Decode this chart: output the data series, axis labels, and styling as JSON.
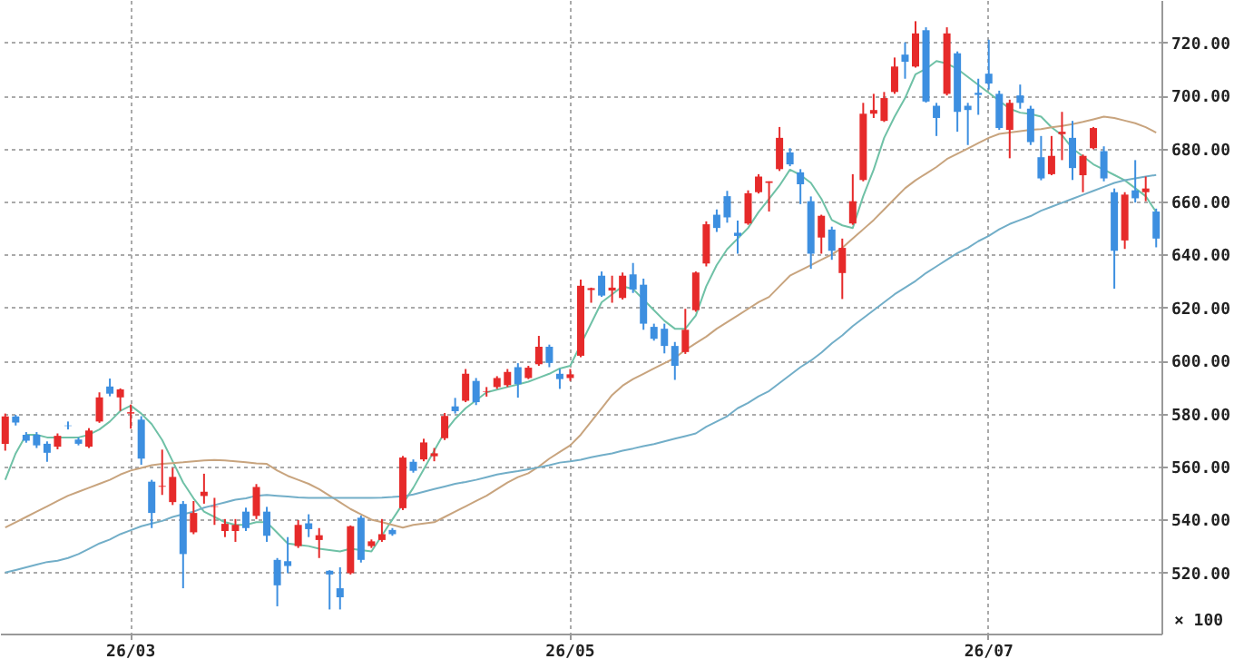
{
  "chart_data": {
    "type": "candlestick",
    "categories": [
      null,
      null,
      null,
      null,
      null,
      null,
      null,
      null,
      null,
      null,
      null,
      null,
      "26/03",
      null,
      null,
      null,
      null,
      null,
      null,
      null,
      null,
      null,
      null,
      null,
      null,
      null,
      null,
      null,
      null,
      null,
      null,
      null,
      null,
      null,
      null,
      null,
      null,
      null,
      null,
      null,
      null,
      null,
      null,
      null,
      null,
      null,
      null,
      null,
      null,
      null,
      null,
      null,
      null,
      null,
      "26/05",
      null,
      null,
      null,
      null,
      null,
      null,
      null,
      null,
      null,
      null,
      null,
      null,
      null,
      null,
      null,
      null,
      null,
      null,
      null,
      null,
      null,
      null,
      null,
      null,
      null,
      null,
      null,
      null,
      null,
      null,
      null,
      null,
      null,
      null,
      null,
      null,
      null,
      null,
      null,
      "26/07",
      null,
      null,
      null,
      null,
      null,
      null,
      null,
      null,
      null,
      null,
      null,
      null,
      null,
      null,
      null,
      null
    ],
    "ohlc": [
      [
        568.6,
        580,
        566,
        578.9
      ],
      [
        578.9,
        579.5,
        575.5,
        576.6
      ],
      [
        572,
        573,
        569,
        569.8
      ],
      [
        572,
        573,
        567,
        568
      ],
      [
        568.6,
        569.5,
        561.8,
        565.2
      ],
      [
        567.5,
        572.5,
        566.5,
        571.6
      ],
      [
        575.5,
        577,
        574,
        575.3
      ],
      [
        570.2,
        571,
        568,
        568.6
      ],
      [
        567.5,
        574.5,
        567,
        573.6
      ],
      [
        577,
        588,
        576.5,
        586.1
      ],
      [
        590.2,
        593.2,
        586.5,
        587.5
      ],
      [
        586.1,
        589.5,
        581,
        589.1
      ],
      [
        580,
        583.4,
        574.3,
        580.5
      ],
      [
        577.7,
        579,
        560.7,
        563
      ],
      [
        554.3,
        555,
        536.8,
        542.5
      ],
      [
        552.4,
        566.4,
        549.3,
        552.7
      ],
      [
        546.6,
        559.5,
        545.5,
        556.1
      ],
      [
        545.9,
        547,
        514.1,
        527
      ],
      [
        535.2,
        547,
        534.5,
        542.5
      ],
      [
        548.9,
        557.3,
        546,
        550.5
      ],
      [
        544.8,
        548.2,
        538,
        545
      ],
      [
        535.7,
        540.2,
        533.4,
        538.4
      ],
      [
        535.7,
        540.2,
        531.6,
        538
      ],
      [
        543,
        544.5,
        535.7,
        536.8
      ],
      [
        541.4,
        553.4,
        540.2,
        552.3
      ],
      [
        543,
        544.8,
        531.6,
        533.9
      ],
      [
        524.8,
        525.5,
        507.3,
        515.2
      ],
      [
        524.3,
        533.4,
        519.8,
        522.5
      ],
      [
        530,
        539.8,
        529.3,
        538
      ],
      [
        538.6,
        542,
        533.4,
        536.4
      ],
      [
        532.3,
        536.8,
        525.5,
        534.1
      ],
      [
        520.7,
        520.9,
        506.1,
        519.3
      ],
      [
        514.1,
        522,
        506.1,
        510.7
      ],
      [
        519.8,
        537.8,
        519.3,
        537.5
      ],
      [
        540.7,
        541.5,
        523.8,
        524.8
      ],
      [
        530,
        532.5,
        529.3,
        531.8
      ],
      [
        532.3,
        540.2,
        531.6,
        534.5
      ],
      [
        536.1,
        536.8,
        533.9,
        534.5
      ],
      [
        544.3,
        564,
        543.6,
        563.4
      ],
      [
        561.8,
        562.7,
        557.7,
        558.4
      ],
      [
        562.7,
        570.5,
        562,
        569.1
      ],
      [
        563.9,
        567,
        562,
        565
      ],
      [
        570.7,
        580.2,
        570,
        579.1
      ],
      [
        582.7,
        585.9,
        580,
        580.9
      ],
      [
        584.8,
        596.8,
        584.3,
        595
      ],
      [
        592.3,
        593.4,
        583.2,
        584.3
      ],
      [
        588.2,
        590,
        586.4,
        588.4
      ],
      [
        590,
        594.1,
        589.3,
        593.4
      ],
      [
        590.7,
        596.8,
        590,
        595.7
      ],
      [
        597.5,
        599,
        586,
        591.1
      ],
      [
        593.4,
        598,
        593,
        597.3
      ],
      [
        598.6,
        609.3,
        598,
        605.2
      ],
      [
        605.2,
        606,
        597.5,
        599.1
      ],
      [
        595,
        596.8,
        589.3,
        593
      ],
      [
        593.4,
        596.8,
        592.3,
        594.8
      ],
      [
        601.8,
        630.5,
        601.3,
        628.2
      ],
      [
        626.6,
        627.5,
        621.8,
        627.3
      ],
      [
        632,
        633.6,
        624,
        624.5
      ],
      [
        626.4,
        632,
        621.8,
        627.5
      ],
      [
        623.6,
        633.2,
        623,
        632
      ],
      [
        632.5,
        636.8,
        625.5,
        626.8
      ],
      [
        628.6,
        630.9,
        611.6,
        613.9
      ],
      [
        612.7,
        613.9,
        607.5,
        608.2
      ],
      [
        612,
        613.9,
        602.7,
        605.5
      ],
      [
        605.5,
        607,
        592.7,
        598
      ],
      [
        603.2,
        619.5,
        602.5,
        611.6
      ],
      [
        619,
        633.6,
        618.4,
        633.2
      ],
      [
        636.6,
        652.5,
        635.5,
        651.4
      ],
      [
        655,
        657,
        648.5,
        650
      ],
      [
        662,
        664,
        652,
        654
      ],
      [
        648.2,
        652.8,
        640.3,
        647
      ],
      [
        651.7,
        664.2,
        651.2,
        663.1
      ],
      [
        663.5,
        670.3,
        663,
        669.4
      ],
      [
        667,
        667.6,
        656.2,
        667.6
      ],
      [
        672.2,
        688.1,
        671.5,
        684
      ],
      [
        678.5,
        680.1,
        673.3,
        674
      ],
      [
        671,
        672.2,
        659,
        666.5
      ],
      [
        660.1,
        661.9,
        634.6,
        640.3
      ],
      [
        646.4,
        655,
        640.3,
        654.6
      ],
      [
        649.4,
        650.5,
        638,
        641.4
      ],
      [
        633,
        646,
        623.2,
        642.5
      ],
      [
        651.7,
        670.3,
        651.2,
        660.1
      ],
      [
        668.1,
        697.2,
        667.6,
        693.1
      ],
      [
        693.1,
        700.6,
        691.5,
        694.5
      ],
      [
        690.4,
        701.3,
        690,
        699
      ],
      [
        701.3,
        714.3,
        700.6,
        710.9
      ],
      [
        715.4,
        720,
        706.3,
        712.7
      ],
      [
        710.9,
        728,
        710.5,
        723.4
      ],
      [
        724.6,
        725.7,
        697.3,
        697.7
      ],
      [
        696.1,
        697.2,
        684.7,
        691.5
      ],
      [
        700.6,
        725.7,
        700,
        723.4
      ],
      [
        715.9,
        716.6,
        686.3,
        693.8
      ],
      [
        696.1,
        697.2,
        681.3,
        694.5
      ],
      [
        701,
        706.3,
        692.7,
        700.2
      ],
      [
        708.2,
        721,
        702.2,
        704.5
      ],
      [
        700.6,
        701.8,
        687,
        687.7
      ],
      [
        687,
        698.4,
        676.3,
        697.2
      ],
      [
        700,
        704.1,
        695,
        697.2
      ],
      [
        695,
        696.1,
        681.3,
        682.4
      ],
      [
        676.7,
        684.7,
        668,
        668.7
      ],
      [
        670.3,
        684.7,
        669.9,
        677.2
      ],
      [
        685.4,
        693.8,
        675.6,
        686.3
      ],
      [
        684,
        690.4,
        668.1,
        672.6
      ],
      [
        669.9,
        677.7,
        663.5,
        677.2
      ],
      [
        680.1,
        688.1,
        679.7,
        687.7
      ],
      [
        679,
        680.8,
        667.6,
        668.7
      ],
      [
        663.5,
        664.9,
        627.1,
        641.4
      ],
      [
        645.3,
        663.5,
        642.1,
        662.6
      ],
      [
        664.2,
        675.6,
        659.6,
        661.2
      ],
      [
        663.5,
        669.4,
        660.1,
        664.9
      ],
      [
        656.2,
        657.3,
        642.7,
        646
      ]
    ],
    "colors": [
      "#e62a2a",
      "#3d8fe0",
      "#3d8fe0",
      "#3d8fe0",
      "#3d8fe0",
      "#e62a2a",
      "#3d8fe0",
      "#3d8fe0",
      "#e62a2a",
      "#e62a2a",
      "#3d8fe0",
      "#e62a2a",
      "#e62a2a",
      "#3d8fe0",
      "#3d8fe0",
      "#e62a2a",
      "#e62a2a",
      "#3d8fe0",
      "#e62a2a",
      "#e62a2a",
      "#e62a2a",
      "#e62a2a",
      "#e62a2a",
      "#3d8fe0",
      "#e62a2a",
      "#3d8fe0",
      "#3d8fe0",
      "#3d8fe0",
      "#e62a2a",
      "#3d8fe0",
      "#e62a2a",
      "#3d8fe0",
      "#3d8fe0",
      "#e62a2a",
      "#3d8fe0",
      "#e62a2a",
      "#e62a2a",
      "#3d8fe0",
      "#e62a2a",
      "#3d8fe0",
      "#e62a2a",
      "#e62a2a",
      "#e62a2a",
      "#3d8fe0",
      "#e62a2a",
      "#3d8fe0",
      "#e62a2a",
      "#e62a2a",
      "#e62a2a",
      "#3d8fe0",
      "#e62a2a",
      "#e62a2a",
      "#3d8fe0",
      "#3d8fe0",
      "#e62a2a",
      "#e62a2a",
      "#e62a2a",
      "#3d8fe0",
      "#e62a2a",
      "#e62a2a",
      "#3d8fe0",
      "#3d8fe0",
      "#3d8fe0",
      "#3d8fe0",
      "#3d8fe0",
      "#e62a2a",
      "#e62a2a",
      "#e62a2a",
      "#3d8fe0",
      "#3d8fe0",
      "#3d8fe0",
      "#e62a2a",
      "#e62a2a",
      "#e62a2a",
      "#e62a2a",
      "#3d8fe0",
      "#3d8fe0",
      "#3d8fe0",
      "#e62a2a",
      "#3d8fe0",
      "#e62a2a",
      "#e62a2a",
      "#e62a2a",
      "#e62a2a",
      "#e62a2a",
      "#e62a2a",
      "#3d8fe0",
      "#e62a2a",
      "#3d8fe0",
      "#3d8fe0",
      "#e62a2a",
      "#3d8fe0",
      "#3d8fe0",
      "#3d8fe0",
      "#3d8fe0",
      "#3d8fe0",
      "#e62a2a",
      "#3d8fe0",
      "#3d8fe0",
      "#3d8fe0",
      "#e62a2a",
      "#e62a2a",
      "#3d8fe0",
      "#e62a2a",
      "#e62a2a",
      "#3d8fe0",
      "#3d8fe0",
      "#e62a2a",
      "#3d8fe0",
      "#e62a2a",
      "#3d8fe0"
    ],
    "series": [
      {
        "type": "line",
        "color": "#6fc1a6",
        "values": [
          555,
          565,
          572,
          572,
          571,
          571,
          571,
          571,
          572,
          574,
          577,
          581,
          583,
          580,
          576,
          570,
          562,
          554,
          548,
          543,
          541,
          539,
          538,
          538,
          539,
          539,
          535,
          531,
          530.5,
          530,
          529,
          528.5,
          528,
          529,
          528.5,
          528,
          534,
          540,
          546,
          552,
          559,
          566,
          573,
          578,
          582,
          585,
          588,
          589,
          590,
          591,
          592,
          593.5,
          595,
          597,
          598,
          606,
          614,
          622,
          625,
          628,
          627,
          623,
          619,
          615,
          612,
          612,
          617,
          628,
          636,
          642,
          646,
          650,
          656,
          661,
          666,
          672,
          670,
          667,
          661,
          653,
          651,
          650,
          662,
          672,
          684,
          692,
          699,
          708,
          710,
          713,
          712,
          710,
          707,
          704,
          701,
          698,
          695,
          693.5,
          693,
          692,
          688,
          685,
          680,
          677,
          674,
          672,
          670,
          668,
          665,
          662,
          656
        ]
      },
      {
        "type": "line",
        "color": "#c8a47e",
        "values": [
          537,
          539,
          541,
          543,
          545,
          547,
          549,
          550.5,
          552,
          553.5,
          555,
          557,
          558.5,
          559.5,
          560.5,
          561,
          561.3,
          561.6,
          562,
          562.3,
          562.5,
          562.3,
          562,
          561.6,
          561.2,
          561,
          558.5,
          556.5,
          555,
          553.5,
          551.5,
          549,
          546.5,
          544,
          542,
          540,
          539,
          538,
          537,
          538,
          538.5,
          539,
          541,
          543,
          545,
          547,
          549,
          551.5,
          554,
          556,
          557.5,
          560,
          563,
          565.5,
          568,
          572,
          577,
          582,
          587,
          590.5,
          593,
          595,
          597,
          599,
          601,
          604,
          606.5,
          609,
          612,
          614.5,
          617,
          619.5,
          622,
          624,
          628,
          632,
          634,
          636,
          638,
          640,
          642.5,
          646,
          649.5,
          653,
          657,
          661,
          665,
          668,
          670.5,
          673,
          676,
          678,
          680,
          682,
          684,
          685.5,
          686,
          686.5,
          687,
          687.3,
          688,
          688.5,
          689.2,
          690,
          691,
          692,
          691.5,
          690.5,
          689.5,
          688,
          686
        ]
      },
      {
        "type": "line",
        "color": "#72aec8",
        "values": [
          520,
          521,
          522,
          523,
          524,
          524.5,
          525.5,
          527,
          529,
          531,
          532.5,
          534.5,
          536,
          537.5,
          538.5,
          539.5,
          541,
          542,
          543,
          544.5,
          545.5,
          546.5,
          547.5,
          548,
          549,
          549.3,
          549,
          548.7,
          548.4,
          548.2,
          548.2,
          548.2,
          548.2,
          548.2,
          548.2,
          548.2,
          548.3,
          548.5,
          548.8,
          549.5,
          550.5,
          551.5,
          552.5,
          553.5,
          554.2,
          555,
          556,
          557,
          557.7,
          558.3,
          559,
          559.7,
          560.5,
          561.5,
          562,
          562.6,
          563.5,
          564.3,
          565,
          566,
          566.8,
          567.7,
          568.5,
          569.5,
          570.5,
          571.5,
          572.5,
          575,
          577,
          579,
          582,
          584,
          586.5,
          588.5,
          591.5,
          594.5,
          597.5,
          600,
          603,
          606.5,
          609.5,
          613,
          616,
          619,
          622,
          625,
          627.5,
          630,
          633,
          635.5,
          638,
          640.5,
          642.5,
          645,
          647,
          649.5,
          651.5,
          653,
          654.5,
          656.5,
          658,
          659.5,
          661,
          662.5,
          664,
          665.5,
          667,
          668,
          668.7,
          669.4,
          670
        ]
      }
    ],
    "ylim": [
      497,
      736
    ],
    "yticks": [
      {
        "value": 520,
        "label": "520.00"
      },
      {
        "value": 540,
        "label": "540.00"
      },
      {
        "value": 560,
        "label": "560.00"
      },
      {
        "value": 580,
        "label": "580.00"
      },
      {
        "value": 600,
        "label": "600.00"
      },
      {
        "value": 620,
        "label": "620.00"
      },
      {
        "value": 640,
        "label": "640.00"
      },
      {
        "value": 660,
        "label": "660.00"
      },
      {
        "value": 680,
        "label": "680.00"
      },
      {
        "value": 700,
        "label": "700.00"
      },
      {
        "value": 720,
        "label": "720.00"
      }
    ],
    "grid": true,
    "ylabel": "× 100"
  }
}
